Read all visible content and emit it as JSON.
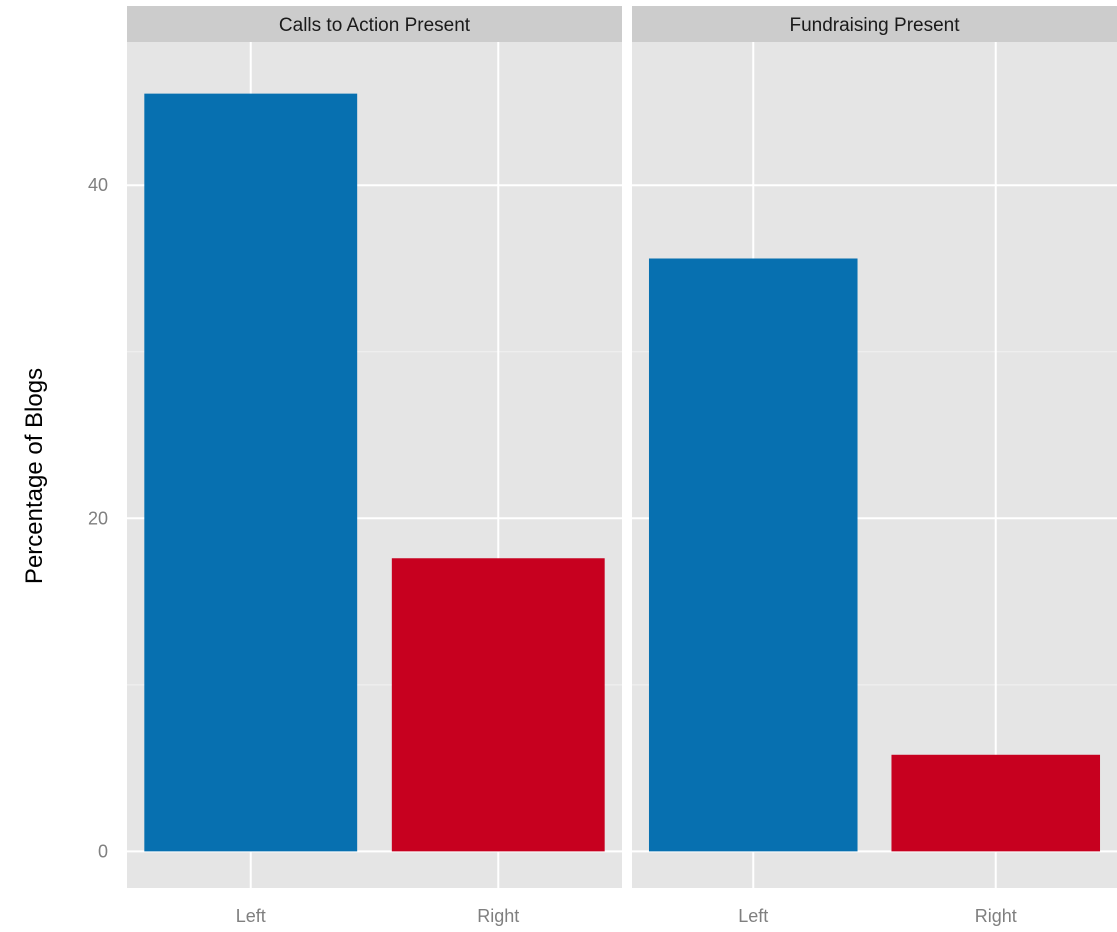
{
  "chart_data": {
    "type": "bar",
    "ylabel": "Percentage of Blogs",
    "xlabel": "",
    "ylim": [
      -2.2,
      48.6
    ],
    "yticks": [
      0,
      20,
      40
    ],
    "grid": true,
    "legend": "none",
    "categories": [
      "Left",
      "Right"
    ],
    "colors": {
      "Left": "#0770b0",
      "Right": "#c7001f"
    },
    "panels": [
      {
        "title": "Calls to Action Present",
        "values": [
          45.5,
          17.6
        ]
      },
      {
        "title": "Fundraising Present",
        "values": [
          35.6,
          5.8
        ]
      }
    ]
  }
}
